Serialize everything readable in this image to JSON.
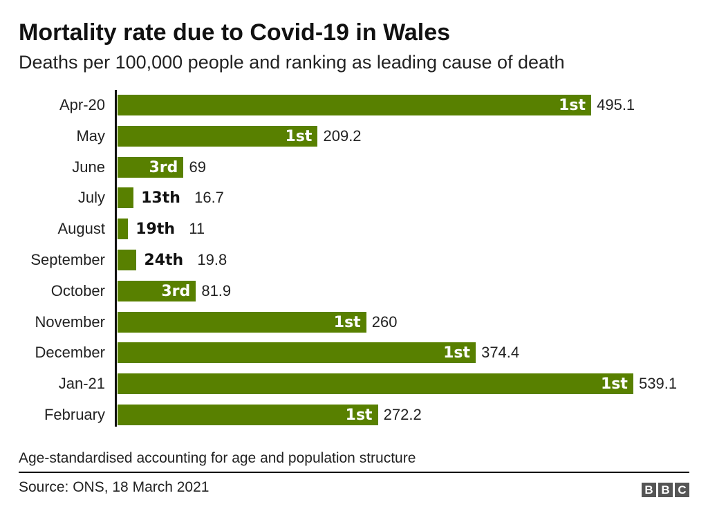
{
  "title": "Mortality rate due to Covid-19 in Wales",
  "subtitle": "Deaths per 100,000 people and ranking as leading cause of death",
  "note": "Age-standardised accounting for age and population structure",
  "source": "Source: ONS, 18 March 2021",
  "logo": "BBC",
  "colors": {
    "bar": "#588000",
    "inside_label": "#ffffff",
    "outside_label": "#111111"
  },
  "chart_data": {
    "type": "bar",
    "orientation": "horizontal",
    "title": "Mortality rate due to Covid-19 in Wales",
    "subtitle": "Deaths per 100,000 people and ranking as leading cause of death",
    "categories": [
      "Apr-20",
      "May",
      "June",
      "July",
      "August",
      "September",
      "October",
      "November",
      "December",
      "Jan-21",
      "February"
    ],
    "values": [
      495.1,
      209.2,
      69,
      16.7,
      11,
      19.8,
      81.9,
      260,
      374.4,
      539.1,
      272.2
    ],
    "value_labels": [
      "495.1",
      "209.2",
      "69",
      "16.7",
      "11",
      "19.8",
      "81.9",
      "260",
      "374.4",
      "539.1",
      "272.2"
    ],
    "ranks": [
      "1st",
      "1st",
      "3rd",
      "13th",
      "19th",
      "24th",
      "3rd",
      "1st",
      "1st",
      "1st",
      "1st"
    ],
    "xlim": [
      0,
      540
    ],
    "grid": false,
    "legend": "none"
  }
}
